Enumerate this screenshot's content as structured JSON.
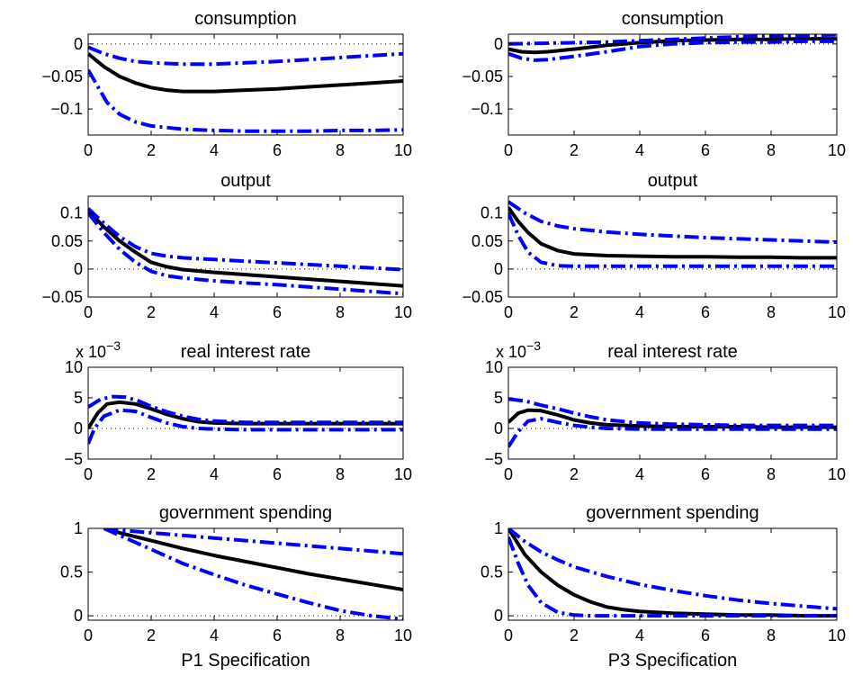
{
  "chart_data": [
    {
      "type": "line",
      "column": "left",
      "title": "consumption",
      "xlabel": "",
      "xlim": [
        0,
        10
      ],
      "ylim": [
        -0.14,
        0.015
      ],
      "xticks": [
        "0",
        "2",
        "4",
        "6",
        "8",
        "10"
      ],
      "yticks": [
        {
          "v": 0,
          "label": "0"
        },
        {
          "v": -0.05,
          "label": "-0.05"
        },
        {
          "v": -0.1,
          "label": "-0.1"
        }
      ],
      "exponent": "",
      "zero_line": true,
      "series": [
        {
          "role": "median",
          "x": [
            0,
            0.5,
            1,
            1.5,
            2,
            2.5,
            3,
            4,
            5,
            6,
            7,
            8,
            9,
            10
          ],
          "y": [
            -0.015,
            -0.035,
            -0.05,
            -0.06,
            -0.067,
            -0.071,
            -0.073,
            -0.073,
            -0.071,
            -0.069,
            -0.066,
            -0.063,
            -0.06,
            -0.057
          ]
        },
        {
          "role": "upper-band",
          "x": [
            0,
            0.5,
            1,
            1.5,
            2,
            3,
            4,
            5,
            6,
            7,
            8,
            9,
            10
          ],
          "y": [
            -0.005,
            -0.015,
            -0.022,
            -0.027,
            -0.029,
            -0.031,
            -0.031,
            -0.029,
            -0.027,
            -0.024,
            -0.021,
            -0.018,
            -0.015
          ]
        },
        {
          "role": "lower-band",
          "x": [
            0,
            0.3,
            0.6,
            1,
            1.5,
            2,
            3,
            4,
            5,
            6,
            7,
            8,
            9,
            10
          ],
          "y": [
            -0.04,
            -0.065,
            -0.09,
            -0.108,
            -0.12,
            -0.126,
            -0.131,
            -0.133,
            -0.134,
            -0.134,
            -0.134,
            -0.133,
            -0.133,
            -0.132
          ]
        }
      ]
    },
    {
      "type": "line",
      "column": "right",
      "title": "consumption",
      "xlabel": "",
      "xlim": [
        0,
        10
      ],
      "ylim": [
        -0.14,
        0.015
      ],
      "xticks": [
        "0",
        "2",
        "4",
        "6",
        "8",
        "10"
      ],
      "yticks": [
        {
          "v": 0,
          "label": "0"
        },
        {
          "v": -0.05,
          "label": "-0.05"
        },
        {
          "v": -0.1,
          "label": "-0.1"
        }
      ],
      "exponent": "",
      "zero_line": true,
      "series": [
        {
          "role": "median",
          "x": [
            0,
            0.4,
            0.8,
            1.2,
            2,
            3,
            4,
            5,
            6,
            7,
            8,
            9,
            10
          ],
          "y": [
            -0.008,
            -0.012,
            -0.013,
            -0.012,
            -0.008,
            -0.002,
            0.002,
            0.005,
            0.006,
            0.007,
            0.007,
            0.008,
            0.008
          ]
        },
        {
          "role": "upper-band",
          "x": [
            0,
            1,
            2,
            3,
            4,
            5,
            6,
            7,
            8,
            9,
            10
          ],
          "y": [
            0.0,
            0.001,
            0.002,
            0.003,
            0.005,
            0.007,
            0.009,
            0.011,
            0.012,
            0.013,
            0.014
          ]
        },
        {
          "role": "lower-band",
          "x": [
            0,
            0.4,
            0.8,
            1.2,
            2,
            3,
            4,
            5,
            6,
            7,
            8,
            9,
            10
          ],
          "y": [
            -0.015,
            -0.022,
            -0.025,
            -0.024,
            -0.019,
            -0.012,
            -0.004,
            0.0,
            0.002,
            0.003,
            0.003,
            0.004,
            0.004
          ]
        }
      ]
    },
    {
      "type": "line",
      "column": "left",
      "title": "output",
      "xlabel": "",
      "xlim": [
        0,
        10
      ],
      "ylim": [
        -0.05,
        0.13
      ],
      "xticks": [
        "0",
        "2",
        "4",
        "6",
        "8",
        "10"
      ],
      "yticks": [
        {
          "v": 0.1,
          "label": "0.1"
        },
        {
          "v": 0.05,
          "label": "0.05"
        },
        {
          "v": 0,
          "label": "0"
        },
        {
          "v": -0.05,
          "label": "-0.05"
        }
      ],
      "exponent": "",
      "zero_line": true,
      "series": [
        {
          "role": "median",
          "x": [
            0,
            0.5,
            1,
            1.5,
            2,
            2.5,
            3,
            4,
            5,
            6,
            7,
            8,
            9,
            10
          ],
          "y": [
            0.105,
            0.075,
            0.05,
            0.03,
            0.012,
            0.004,
            -0.001,
            -0.006,
            -0.01,
            -0.014,
            -0.018,
            -0.022,
            -0.026,
            -0.03
          ]
        },
        {
          "role": "upper-band",
          "x": [
            0,
            0.5,
            1,
            1.5,
            2,
            2.5,
            3,
            4,
            5,
            6,
            7,
            8,
            9,
            10
          ],
          "y": [
            0.108,
            0.082,
            0.058,
            0.04,
            0.028,
            0.023,
            0.02,
            0.017,
            0.014,
            0.011,
            0.008,
            0.005,
            0.002,
            -0.001
          ]
        },
        {
          "role": "lower-band",
          "x": [
            0,
            0.5,
            1,
            1.5,
            2,
            2.5,
            3,
            4,
            5,
            6,
            7,
            8,
            9,
            10
          ],
          "y": [
            0.1,
            0.065,
            0.035,
            0.012,
            -0.004,
            -0.012,
            -0.016,
            -0.021,
            -0.025,
            -0.028,
            -0.032,
            -0.036,
            -0.04,
            -0.044
          ]
        }
      ]
    },
    {
      "type": "line",
      "column": "right",
      "title": "output",
      "xlabel": "",
      "xlim": [
        0,
        10
      ],
      "ylim": [
        -0.05,
        0.13
      ],
      "xticks": [
        "0",
        "2",
        "4",
        "6",
        "8",
        "10"
      ],
      "yticks": [
        {
          "v": 0.1,
          "label": "0.1"
        },
        {
          "v": 0.05,
          "label": "0.05"
        },
        {
          "v": 0,
          "label": "0"
        },
        {
          "v": -0.05,
          "label": "-0.05"
        }
      ],
      "exponent": "",
      "zero_line": true,
      "series": [
        {
          "role": "median",
          "x": [
            0,
            0.3,
            0.6,
            1,
            1.5,
            2,
            3,
            4,
            5,
            6,
            7,
            8,
            9,
            10
          ],
          "y": [
            0.11,
            0.085,
            0.065,
            0.045,
            0.033,
            0.027,
            0.024,
            0.023,
            0.022,
            0.022,
            0.021,
            0.021,
            0.02,
            0.02
          ]
        },
        {
          "role": "upper-band",
          "x": [
            0,
            0.5,
            1,
            1.5,
            2,
            3,
            4,
            5,
            6,
            7,
            8,
            9,
            10
          ],
          "y": [
            0.12,
            0.1,
            0.085,
            0.077,
            0.072,
            0.066,
            0.062,
            0.059,
            0.056,
            0.054,
            0.052,
            0.05,
            0.048
          ]
        },
        {
          "role": "lower-band",
          "x": [
            0,
            0.3,
            0.6,
            1,
            1.5,
            2,
            3,
            4,
            5,
            6,
            7,
            8,
            9,
            10
          ],
          "y": [
            0.1,
            0.06,
            0.03,
            0.012,
            0.006,
            0.005,
            0.005,
            0.005,
            0.005,
            0.005,
            0.005,
            0.005,
            0.005,
            0.005
          ]
        }
      ]
    },
    {
      "type": "line",
      "column": "left",
      "title": "real interest rate",
      "xlabel": "",
      "xlim": [
        0,
        10
      ],
      "ylim": [
        -5,
        10
      ],
      "xticks": [
        "0",
        "2",
        "4",
        "6",
        "8",
        "10"
      ],
      "yticks": [
        {
          "v": 10,
          "label": "10"
        },
        {
          "v": 5,
          "label": "5"
        },
        {
          "v": 0,
          "label": "0"
        },
        {
          "v": -5,
          "label": "-5"
        }
      ],
      "exponent": "x 10",
      "exponent_power": "-3",
      "zero_line": true,
      "series": [
        {
          "role": "median",
          "x": [
            0,
            0.3,
            0.6,
            1,
            1.5,
            2,
            2.5,
            3,
            3.5,
            4,
            5,
            6,
            7,
            8,
            9,
            10
          ],
          "y": [
            0,
            2.5,
            4,
            4.3,
            4.0,
            3.2,
            2.3,
            1.6,
            1.1,
            0.9,
            0.8,
            0.8,
            0.8,
            0.8,
            0.8,
            0.8
          ]
        },
        {
          "role": "upper-band",
          "x": [
            0,
            0.4,
            0.8,
            1.2,
            1.6,
            2,
            2.5,
            3,
            3.5,
            4,
            5,
            6,
            7,
            8,
            9,
            10
          ],
          "y": [
            3.5,
            4.8,
            5.2,
            5.1,
            4.5,
            3.6,
            2.7,
            2.0,
            1.5,
            1.2,
            1.0,
            1.0,
            1.0,
            1.0,
            1.0,
            1.0
          ]
        },
        {
          "role": "lower-band",
          "x": [
            0,
            0.2,
            0.5,
            1,
            1.5,
            2,
            2.5,
            3,
            3.5,
            4,
            5,
            6,
            7,
            8,
            9,
            10
          ],
          "y": [
            -2.5,
            0,
            2,
            3.0,
            2.8,
            1.8,
            0.9,
            0.3,
            0.0,
            -0.1,
            -0.2,
            -0.2,
            -0.2,
            -0.2,
            -0.2,
            -0.2
          ]
        }
      ]
    },
    {
      "type": "line",
      "column": "right",
      "title": "real interest rate",
      "xlabel": "",
      "xlim": [
        0,
        10
      ],
      "ylim": [
        -5,
        10
      ],
      "xticks": [
        "0",
        "2",
        "4",
        "6",
        "8",
        "10"
      ],
      "yticks": [
        {
          "v": 10,
          "label": "10"
        },
        {
          "v": 5,
          "label": "5"
        },
        {
          "v": 0,
          "label": "0"
        },
        {
          "v": -5,
          "label": "-5"
        }
      ],
      "exponent": "x 10",
      "exponent_power": "-3",
      "zero_line": true,
      "series": [
        {
          "role": "median",
          "x": [
            0,
            0.3,
            0.6,
            1,
            1.5,
            2,
            2.5,
            3,
            4,
            5,
            6,
            7,
            8,
            9,
            10
          ],
          "y": [
            1,
            2.5,
            3.0,
            2.9,
            2.2,
            1.4,
            0.9,
            0.6,
            0.4,
            0.3,
            0.3,
            0.3,
            0.2,
            0.2,
            0.2
          ]
        },
        {
          "role": "upper-band",
          "x": [
            0,
            0.5,
            1,
            1.5,
            2,
            2.5,
            3,
            4,
            5,
            6,
            7,
            8,
            9,
            10
          ],
          "y": [
            4.8,
            4.5,
            3.8,
            3.2,
            2.5,
            1.9,
            1.4,
            0.9,
            0.7,
            0.6,
            0.5,
            0.5,
            0.5,
            0.5
          ]
        },
        {
          "role": "lower-band",
          "x": [
            0,
            0.3,
            0.6,
            1,
            1.5,
            2,
            2.5,
            3,
            4,
            5,
            6,
            7,
            8,
            9,
            10
          ],
          "y": [
            -3,
            -0.5,
            1.2,
            1.6,
            1.0,
            0.5,
            0.2,
            0.0,
            -0.1,
            -0.1,
            -0.1,
            -0.1,
            -0.1,
            -0.1,
            -0.1
          ]
        }
      ]
    },
    {
      "type": "line",
      "column": "left",
      "title": "government spending",
      "xlabel": "P1 Specification",
      "xlim": [
        0,
        10
      ],
      "ylim": [
        -0.05,
        1.0
      ],
      "xticks": [
        "0",
        "2",
        "4",
        "6",
        "8",
        "10"
      ],
      "yticks": [
        {
          "v": 1,
          "label": "1"
        },
        {
          "v": 0.5,
          "label": "0.5"
        },
        {
          "v": 0,
          "label": "0"
        }
      ],
      "exponent": "",
      "zero_line": true,
      "series": [
        {
          "role": "median",
          "x": [
            0.5,
            1,
            2,
            3,
            4,
            5,
            6,
            7,
            8,
            9,
            10
          ],
          "y": [
            1.0,
            0.95,
            0.86,
            0.77,
            0.69,
            0.62,
            0.55,
            0.48,
            0.42,
            0.36,
            0.3
          ]
        },
        {
          "role": "upper-band",
          "x": [
            0.5,
            1,
            2,
            3,
            4,
            5,
            6,
            7,
            8,
            9,
            10
          ],
          "y": [
            1.0,
            0.98,
            0.95,
            0.92,
            0.89,
            0.86,
            0.83,
            0.8,
            0.77,
            0.74,
            0.71
          ]
        },
        {
          "role": "lower-band",
          "x": [
            0.5,
            1,
            2,
            3,
            4,
            5,
            6,
            7,
            8,
            9,
            10
          ],
          "y": [
            1.0,
            0.92,
            0.76,
            0.6,
            0.47,
            0.35,
            0.25,
            0.15,
            0.06,
            0.0,
            -0.04
          ]
        }
      ]
    },
    {
      "type": "line",
      "column": "right",
      "title": "government spending",
      "xlabel": "P3 Specification",
      "xlim": [
        0,
        10
      ],
      "ylim": [
        -0.05,
        1.0
      ],
      "xticks": [
        "0",
        "2",
        "4",
        "6",
        "8",
        "10"
      ],
      "yticks": [
        {
          "v": 1,
          "label": "1"
        },
        {
          "v": 0.5,
          "label": "0.5"
        },
        {
          "v": 0,
          "label": "0"
        }
      ],
      "exponent": "",
      "zero_line": true,
      "series": [
        {
          "role": "median",
          "x": [
            0,
            0.5,
            1,
            1.5,
            2,
            2.5,
            3,
            3.5,
            4,
            5,
            6,
            7,
            8,
            9,
            10
          ],
          "y": [
            1.0,
            0.7,
            0.5,
            0.35,
            0.24,
            0.16,
            0.1,
            0.07,
            0.05,
            0.03,
            0.02,
            0.01,
            0.01,
            0.0,
            0.0
          ]
        },
        {
          "role": "upper-band",
          "x": [
            0,
            0.5,
            1,
            1.5,
            2,
            3,
            4,
            5,
            6,
            7,
            8,
            9,
            10
          ],
          "y": [
            1.0,
            0.85,
            0.73,
            0.64,
            0.56,
            0.45,
            0.36,
            0.29,
            0.23,
            0.18,
            0.14,
            0.11,
            0.08
          ]
        },
        {
          "role": "lower-band",
          "x": [
            0,
            0.3,
            0.6,
            1,
            1.5,
            2,
            2.5,
            3,
            4,
            5,
            6,
            7,
            8,
            9,
            10
          ],
          "y": [
            0.9,
            0.6,
            0.35,
            0.15,
            0.04,
            0.01,
            0.0,
            0.0,
            0.0,
            0.0,
            0.0,
            0.0,
            0.0,
            0.0,
            0.0
          ]
        }
      ]
    }
  ],
  "style": {
    "median_color": "#000000",
    "band_color": "#0000ff",
    "zero_line_color": "#000000"
  }
}
